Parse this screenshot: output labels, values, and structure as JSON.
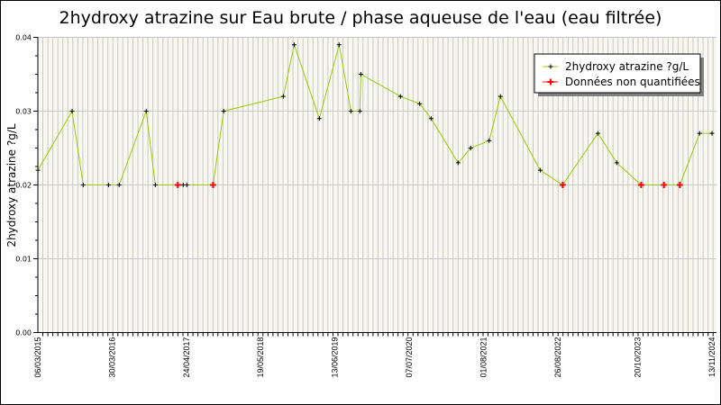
{
  "chart_data": {
    "type": "line",
    "title": "2hydroxy atrazine sur Eau brute / phase aqueuse de l'eau (eau filtrée)",
    "xlabel": "",
    "ylabel": "2hydroxy atrazine ?g/L",
    "xlim": [
      "2015-03-06",
      "2024-11-13"
    ],
    "ylim": [
      0,
      0.04
    ],
    "y_ticks": [
      "0.00",
      "0.01",
      "0.02",
      "0.03",
      "0.04"
    ],
    "x_tick_labels": [
      {
        "date": "2015-03-06",
        "label": "06/03/2015"
      },
      {
        "date": "2016-03-30",
        "label": "30/03/2016"
      },
      {
        "date": "2017-04-24",
        "label": "24/04/2017"
      },
      {
        "date": "2018-05-19",
        "label": "19/05/2018"
      },
      {
        "date": "2019-06-13",
        "label": "13/06/2019"
      },
      {
        "date": "2020-07-07",
        "label": "07/07/2020"
      },
      {
        "date": "2021-08-01",
        "label": "01/08/2021"
      },
      {
        "date": "2022-08-26",
        "label": "26/08/2022"
      },
      {
        "date": "2023-10-20",
        "label": "20/10/2023"
      },
      {
        "date": "2024-11-13",
        "label": "13/11/2024"
      }
    ],
    "grid": true,
    "legend_position": "top-right",
    "series": [
      {
        "name": "2hydroxy atrazine ?g/L",
        "color": "#99cc00",
        "marker_color": "#000000",
        "points": [
          {
            "x": "2015-03-06",
            "y": 0.022,
            "nq": false
          },
          {
            "x": "2015-09-02",
            "y": 0.03,
            "nq": false
          },
          {
            "x": "2015-10-30",
            "y": 0.02,
            "nq": false
          },
          {
            "x": "2016-03-11",
            "y": 0.02,
            "nq": false
          },
          {
            "x": "2016-05-06",
            "y": 0.02,
            "nq": false
          },
          {
            "x": "2016-09-25",
            "y": 0.03,
            "nq": false
          },
          {
            "x": "2016-11-12",
            "y": 0.02,
            "nq": false
          },
          {
            "x": "2017-03-10",
            "y": 0.02,
            "nq": true
          },
          {
            "x": "2017-04-07",
            "y": 0.02,
            "nq": false
          },
          {
            "x": "2017-04-26",
            "y": 0.02,
            "nq": false
          },
          {
            "x": "2017-09-11",
            "y": 0.02,
            "nq": true
          },
          {
            "x": "2017-11-06",
            "y": 0.03,
            "nq": false
          },
          {
            "x": "2018-09-15",
            "y": 0.032,
            "nq": false
          },
          {
            "x": "2018-11-11",
            "y": 0.039,
            "nq": false
          },
          {
            "x": "2019-03-23",
            "y": 0.029,
            "nq": false
          },
          {
            "x": "2019-07-05",
            "y": 0.039,
            "nq": false
          },
          {
            "x": "2019-09-05",
            "y": 0.03,
            "nq": false
          },
          {
            "x": "2019-10-22",
            "y": 0.03,
            "nq": false
          },
          {
            "x": "2019-10-27",
            "y": 0.035,
            "nq": false
          },
          {
            "x": "2020-05-22",
            "y": 0.032,
            "nq": false
          },
          {
            "x": "2020-08-31",
            "y": 0.031,
            "nq": false
          },
          {
            "x": "2020-10-30",
            "y": 0.029,
            "nq": false
          },
          {
            "x": "2021-03-21",
            "y": 0.023,
            "nq": false
          },
          {
            "x": "2021-05-26",
            "y": 0.025,
            "nq": false
          },
          {
            "x": "2021-08-31",
            "y": 0.026,
            "nq": false
          },
          {
            "x": "2021-10-29",
            "y": 0.032,
            "nq": false
          },
          {
            "x": "2022-05-26",
            "y": 0.022,
            "nq": false
          },
          {
            "x": "2022-09-21",
            "y": 0.02,
            "nq": true
          },
          {
            "x": "2023-03-25",
            "y": 0.027,
            "nq": false
          },
          {
            "x": "2023-07-02",
            "y": 0.023,
            "nq": false
          },
          {
            "x": "2023-11-07",
            "y": 0.02,
            "nq": true
          },
          {
            "x": "2024-03-06",
            "y": 0.02,
            "nq": true
          },
          {
            "x": "2024-05-28",
            "y": 0.02,
            "nq": true
          },
          {
            "x": "2024-09-09",
            "y": 0.027,
            "nq": false
          },
          {
            "x": "2024-11-13",
            "y": 0.027,
            "nq": false
          }
        ]
      }
    ],
    "legend": [
      {
        "label": "2hydroxy atrazine ?g/L",
        "marker_color": "#000000",
        "line_color": "#99cc00"
      },
      {
        "label": "Données non quantifiées",
        "marker_color": "#ff0000",
        "line_color": "#ff0000"
      }
    ],
    "colors": {
      "plot_background": "#f8f8f0",
      "grid": "#c8c8c8",
      "line": "#99cc00",
      "nq_marker": "#ff0000"
    }
  }
}
